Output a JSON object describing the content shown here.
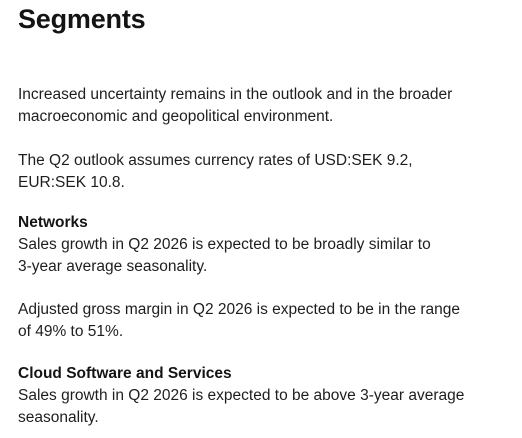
{
  "title": "Segments",
  "intro": {
    "paragraph_1": [
      "Increased uncertainty remains in the outlook and in the broader",
      "macroeconomic and geopolitical environment."
    ],
    "paragraph_2": [
      "The Q2 outlook assumes currency rates of USD:SEK 9.2,",
      "EUR:SEK 10.8."
    ]
  },
  "networks": {
    "heading": "Networks",
    "paragraph_1": [
      "Sales growth in Q2 2026 is expected to be broadly similar to",
      "3-year average seasonality."
    ],
    "paragraph_2": [
      "Adjusted gross margin in Q2 2026 is expected to be in the range",
      "of 49% to 51%."
    ]
  },
  "cloud": {
    "heading": "Cloud Software and Services",
    "paragraph_1": [
      "Sales growth in Q2 2026 is expected to be above 3-year average",
      "seasonality."
    ]
  }
}
